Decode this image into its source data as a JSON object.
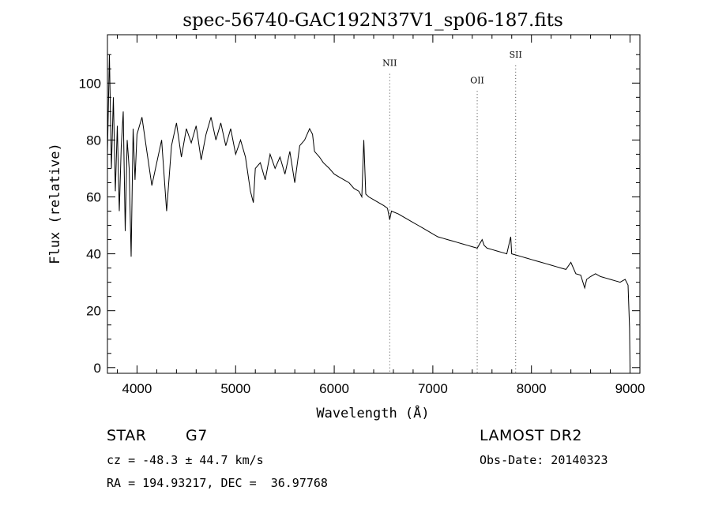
{
  "chart_data": {
    "type": "line",
    "title": "spec-56740-GAC192N37V1_sp06-187.fits",
    "xlabel": "Wavelength (Å)",
    "ylabel": "Flux (relative)",
    "xlim": [
      3700,
      9100
    ],
    "ylim": [
      -2,
      117
    ],
    "xticks": [
      4000,
      5000,
      6000,
      7000,
      8000,
      9000
    ],
    "xtick_labels": [
      "4000",
      "5000",
      "6000",
      "7000",
      "8000",
      "9000"
    ],
    "yticks": [
      0,
      20,
      40,
      60,
      80,
      100
    ],
    "ytick_labels": [
      "0",
      "20",
      "40",
      "60",
      "80",
      "100"
    ],
    "grid": false,
    "series": [
      {
        "x": [
          3700,
          3720,
          3740,
          3760,
          3780,
          3800,
          3820,
          3840,
          3860,
          3880,
          3900,
          3920,
          3940,
          3960,
          3980,
          4000,
          4050,
          4100,
          4150,
          4200,
          4250,
          4300,
          4350,
          4400,
          4450,
          4500,
          4550,
          4600,
          4650,
          4700,
          4750,
          4800,
          4850,
          4900,
          4950,
          5000,
          5050,
          5100,
          5150,
          5180,
          5200,
          5250,
          5300,
          5350,
          5400,
          5450,
          5500,
          5550,
          5600,
          5650,
          5700,
          5750,
          5780,
          5800,
          5850,
          5890,
          5950,
          6000,
          6050,
          6100,
          6150,
          6200,
          6250,
          6280,
          6300,
          6320,
          6350,
          6400,
          6450,
          6500,
          6540,
          6563,
          6580,
          6650,
          6700,
          6750,
          6800,
          6850,
          6900,
          6950,
          7000,
          7050,
          7100,
          7150,
          7200,
          7250,
          7300,
          7350,
          7400,
          7450,
          7500,
          7520,
          7550,
          7600,
          7650,
          7700,
          7750,
          7790,
          7800,
          7850,
          7900,
          7950,
          8000,
          8050,
          8100,
          8150,
          8200,
          8250,
          8300,
          8350,
          8400,
          8450,
          8500,
          8540,
          8560,
          8600,
          8650,
          8700,
          8750,
          8800,
          8850,
          8900,
          8950,
          8980,
          8995,
          9000
        ],
        "y": [
          75,
          110,
          70,
          95,
          62,
          85,
          55,
          78,
          90,
          48,
          80,
          70,
          39,
          84,
          66,
          82,
          88,
          76,
          64,
          72,
          80,
          55,
          78,
          86,
          74,
          84,
          79,
          85,
          73,
          82,
          88,
          80,
          86,
          78,
          84,
          75,
          80,
          74,
          62,
          58,
          70,
          72,
          66,
          75,
          70,
          74,
          68,
          76,
          65,
          78,
          80,
          84,
          82,
          76,
          74,
          72,
          70,
          68,
          67,
          66,
          65,
          63,
          62,
          60,
          80,
          61,
          60,
          59,
          58,
          57,
          56,
          52,
          55,
          54,
          53,
          52,
          51,
          50,
          49,
          48,
          47,
          46,
          45.5,
          45,
          44.5,
          44,
          43.5,
          43,
          42.5,
          42,
          45,
          43,
          42,
          41.5,
          41,
          40.5,
          40,
          46,
          40,
          39.5,
          39,
          38.5,
          38,
          37.5,
          37,
          36.5,
          36,
          35.5,
          35,
          34.5,
          37,
          33,
          32.5,
          28,
          31,
          32,
          33,
          32,
          31.5,
          31,
          30.5,
          30,
          31,
          29,
          14,
          0
        ]
      }
    ],
    "annotations": [
      {
        "label": "NII",
        "x": 6563,
        "y": 106
      },
      {
        "label": "OII",
        "x": 7450,
        "y": 100
      },
      {
        "label": "SII",
        "x": 7840,
        "y": 109
      }
    ]
  },
  "info": {
    "object_class": "STAR",
    "subclass": "G7",
    "cz": "cz = -48.3 ± 44.7 km/s",
    "radec": "RA = 194.93217, DEC =  36.97768",
    "survey": "LAMOST DR2",
    "obs_date": "Obs-Date: 20140323"
  }
}
